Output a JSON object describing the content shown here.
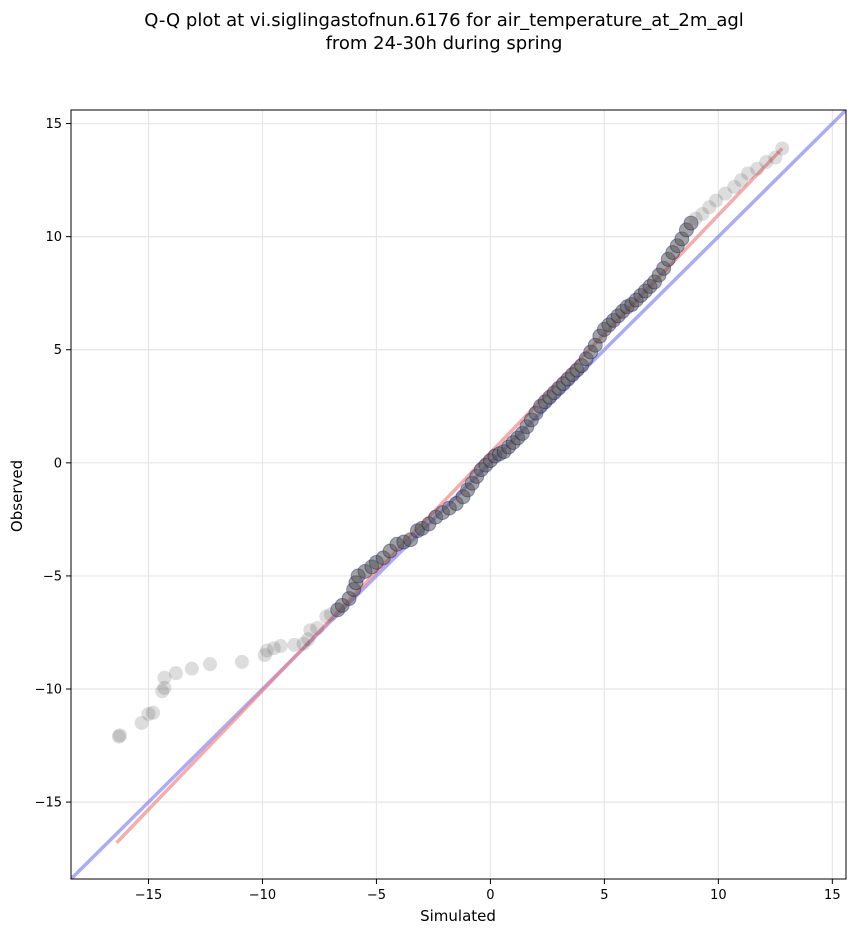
{
  "chart_data": {
    "type": "scatter",
    "title_line1": "Q-Q plot at vi.siglingastofnun.6176 for air_temperature_at_2m_agl",
    "title_line2": "from 24-30h during spring",
    "xlabel": "Simulated",
    "ylabel": "Observed",
    "xlim": [
      -18.4,
      15.6
    ],
    "ylim": [
      -18.4,
      15.6
    ],
    "xticks": [
      -15,
      -10,
      -5,
      0,
      5,
      10,
      15
    ],
    "yticks": [
      -15,
      -10,
      -5,
      0,
      5,
      10,
      15
    ],
    "tick_labels": [
      "−15",
      "−10",
      "−5",
      "0",
      "5",
      "10",
      "15"
    ],
    "grid": true,
    "colors": {
      "points": "#555555",
      "points_edge_core": "#000066",
      "fit_line": "#f08080",
      "identity_line": "#8080f0"
    },
    "identity_line": {
      "name": "",
      "x": [
        -18.4,
        15.6
      ],
      "y": [
        -18.4,
        15.6
      ]
    },
    "fit_line": {
      "name": "",
      "x": [
        -16.4,
        12.8
      ],
      "y": [
        -16.8,
        13.9
      ]
    },
    "series": [
      {
        "name": "",
        "points": [
          [
            -16.3,
            -12.1
          ],
          [
            -16.25,
            -12.05
          ],
          [
            -15.3,
            -11.5
          ],
          [
            -15.0,
            -11.1
          ],
          [
            -14.8,
            -11.05
          ],
          [
            -14.4,
            -10.1
          ],
          [
            -14.3,
            -9.95
          ],
          [
            -14.3,
            -9.5
          ],
          [
            -13.8,
            -9.3
          ],
          [
            -13.1,
            -9.1
          ],
          [
            -12.3,
            -8.9
          ],
          [
            -10.9,
            -8.8
          ],
          [
            -9.9,
            -8.5
          ],
          [
            -9.8,
            -8.3
          ],
          [
            -9.5,
            -8.2
          ],
          [
            -9.2,
            -8.1
          ],
          [
            -8.6,
            -8.05
          ],
          [
            -8.2,
            -8.0
          ],
          [
            -8.0,
            -7.8
          ],
          [
            -7.9,
            -7.4
          ],
          [
            -7.6,
            -7.3
          ],
          [
            -7.2,
            -6.8
          ],
          [
            -7.0,
            -6.7
          ],
          [
            -6.7,
            -6.5
          ],
          [
            -6.5,
            -6.3
          ],
          [
            -6.2,
            -6.0
          ],
          [
            -6.0,
            -5.6
          ],
          [
            -5.9,
            -5.3
          ],
          [
            -5.8,
            -5.0
          ],
          [
            -5.5,
            -4.8
          ],
          [
            -5.2,
            -4.6
          ],
          [
            -5.0,
            -4.4
          ],
          [
            -4.7,
            -4.2
          ],
          [
            -4.4,
            -3.9
          ],
          [
            -4.1,
            -3.6
          ],
          [
            -3.8,
            -3.5
          ],
          [
            -3.5,
            -3.4
          ],
          [
            -3.2,
            -3.0
          ],
          [
            -3.0,
            -2.9
          ],
          [
            -2.7,
            -2.7
          ],
          [
            -2.4,
            -2.4
          ],
          [
            -2.1,
            -2.2
          ],
          [
            -1.8,
            -2.0
          ],
          [
            -1.5,
            -1.8
          ],
          [
            -1.2,
            -1.5
          ],
          [
            -1.0,
            -1.2
          ],
          [
            -0.8,
            -0.9
          ],
          [
            -0.6,
            -0.6
          ],
          [
            -0.4,
            -0.3
          ],
          [
            -0.2,
            -0.1
          ],
          [
            0.0,
            0.1
          ],
          [
            0.2,
            0.3
          ],
          [
            0.4,
            0.4
          ],
          [
            0.6,
            0.5
          ],
          [
            0.8,
            0.7
          ],
          [
            1.0,
            0.9
          ],
          [
            1.2,
            1.1
          ],
          [
            1.4,
            1.3
          ],
          [
            1.6,
            1.6
          ],
          [
            1.8,
            1.9
          ],
          [
            2.0,
            2.2
          ],
          [
            2.2,
            2.5
          ],
          [
            2.4,
            2.7
          ],
          [
            2.6,
            2.9
          ],
          [
            2.8,
            3.1
          ],
          [
            3.0,
            3.3
          ],
          [
            3.2,
            3.5
          ],
          [
            3.4,
            3.7
          ],
          [
            3.6,
            3.9
          ],
          [
            3.8,
            4.1
          ],
          [
            4.0,
            4.3
          ],
          [
            4.2,
            4.6
          ],
          [
            4.4,
            4.9
          ],
          [
            4.6,
            5.2
          ],
          [
            4.8,
            5.6
          ],
          [
            5.0,
            5.9
          ],
          [
            5.2,
            6.1
          ],
          [
            5.4,
            6.3
          ],
          [
            5.6,
            6.5
          ],
          [
            5.8,
            6.7
          ],
          [
            6.0,
            6.9
          ],
          [
            6.2,
            7.0
          ],
          [
            6.4,
            7.2
          ],
          [
            6.6,
            7.4
          ],
          [
            6.8,
            7.6
          ],
          [
            7.0,
            7.8
          ],
          [
            7.2,
            8.0
          ],
          [
            7.4,
            8.3
          ],
          [
            7.6,
            8.6
          ],
          [
            7.8,
            9.0
          ],
          [
            8.0,
            9.3
          ],
          [
            8.2,
            9.6
          ],
          [
            8.4,
            9.9
          ],
          [
            8.6,
            10.3
          ],
          [
            8.8,
            10.6
          ],
          [
            9.0,
            10.8
          ],
          [
            9.3,
            11.0
          ],
          [
            9.6,
            11.3
          ],
          [
            9.9,
            11.6
          ],
          [
            10.3,
            11.9
          ],
          [
            10.7,
            12.2
          ],
          [
            11.0,
            12.5
          ],
          [
            11.3,
            12.8
          ],
          [
            11.7,
            13.0
          ],
          [
            12.1,
            13.3
          ],
          [
            12.5,
            13.5
          ],
          [
            12.8,
            13.9
          ]
        ]
      }
    ]
  }
}
